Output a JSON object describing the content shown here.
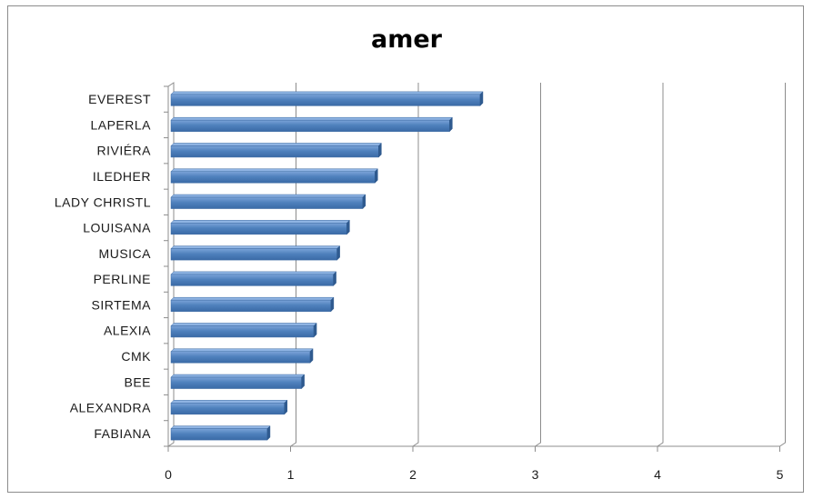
{
  "chart_data": {
    "type": "bar",
    "orientation": "horizontal",
    "title": "amer",
    "categories": [
      "EVEREST",
      "LAPERLA",
      "RIVIÉRA",
      "ILEDHER",
      "LADY CHRISTL",
      "LOUISANA",
      "MUSICA",
      "PERLINE",
      "SIRTEMA",
      "ALEXIA",
      "CMK",
      "BEE",
      "ALEXANDRA",
      "FABIANA"
    ],
    "values": [
      2.55,
      2.3,
      1.72,
      1.69,
      1.59,
      1.46,
      1.38,
      1.35,
      1.33,
      1.19,
      1.16,
      1.09,
      0.95,
      0.81
    ],
    "xlim": [
      0,
      5
    ],
    "xticks": [
      "0",
      "1",
      "2",
      "3",
      "4",
      "5"
    ],
    "grid": "vertical",
    "legend": "none",
    "bar_color": "#4f81bd"
  }
}
